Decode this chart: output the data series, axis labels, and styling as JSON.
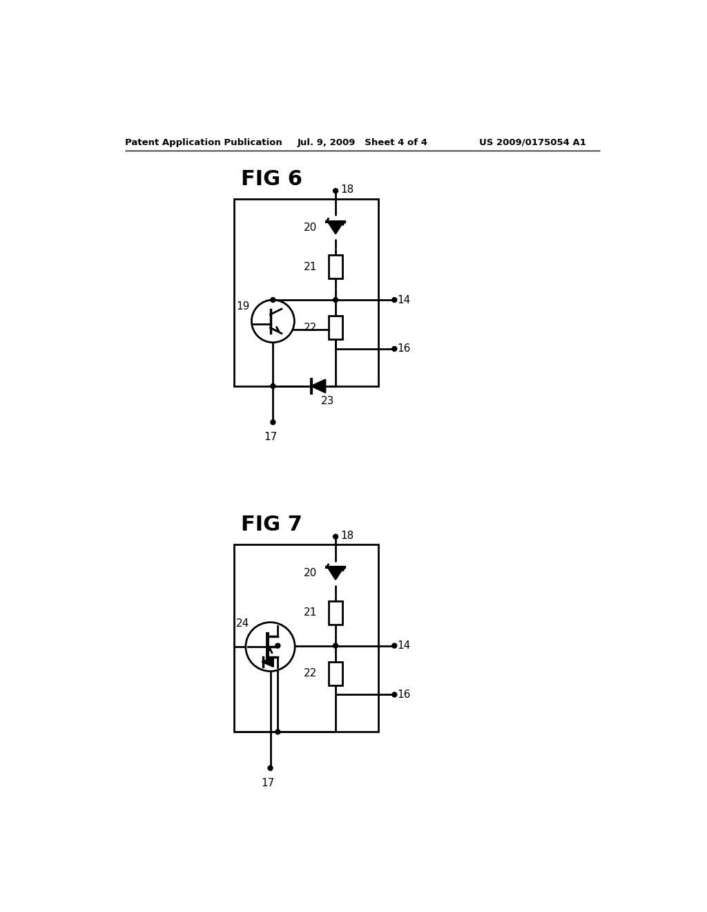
{
  "background_color": "#ffffff",
  "header_left": "Patent Application Publication",
  "header_center": "Jul. 9, 2009   Sheet 4 of 4",
  "header_right": "US 2009/0175054 A1",
  "fig6_label": "FIG 6",
  "fig7_label": "FIG 7"
}
